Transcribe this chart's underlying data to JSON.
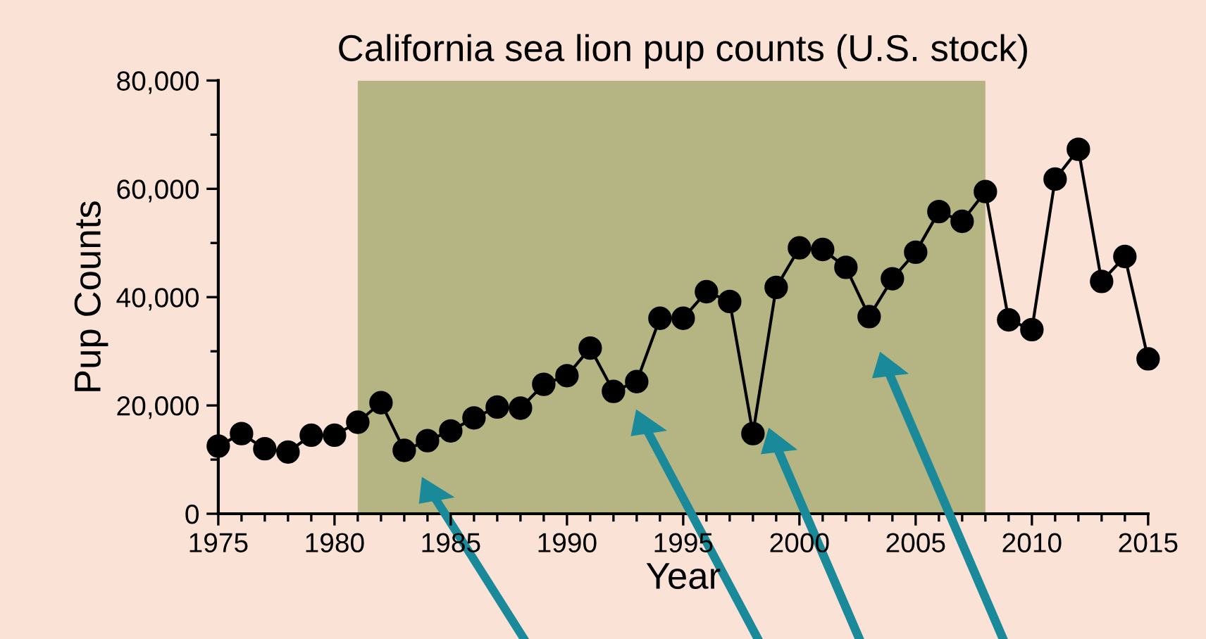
{
  "chart_data": {
    "type": "line",
    "title": "California sea lion pup counts (U.S. stock)",
    "xlabel": "Year",
    "ylabel": "Pup Counts",
    "x": [
      1975,
      1976,
      1977,
      1978,
      1979,
      1980,
      1981,
      1982,
      1983,
      1984,
      1985,
      1986,
      1987,
      1988,
      1989,
      1990,
      1991,
      1992,
      1993,
      1994,
      1995,
      1996,
      1997,
      1998,
      1999,
      2000,
      2001,
      2002,
      2003,
      2004,
      2005,
      2006,
      2007,
      2008,
      2009,
      2010,
      2011,
      2012,
      2013,
      2014,
      2015
    ],
    "series": [
      {
        "color": "#000000",
        "values": [
          12500,
          14800,
          12000,
          11400,
          14500,
          14500,
          16900,
          20500,
          11700,
          13500,
          15300,
          17700,
          19700,
          19500,
          23900,
          25500,
          30600,
          22600,
          24400,
          36100,
          36100,
          41000,
          39200,
          14800,
          41800,
          49100,
          48800,
          45500,
          36400,
          43400,
          48300,
          55800,
          54000,
          59500,
          35800,
          34000,
          61800,
          67300,
          42900,
          47500,
          28600
        ]
      }
    ],
    "marker": "circle",
    "line_style": "solid",
    "grid": false,
    "legend": false,
    "xlim": [
      1975,
      2015
    ],
    "xticks": [
      1975,
      1980,
      1985,
      1990,
      1995,
      2000,
      2005,
      2010,
      2015
    ],
    "ylim": [
      0,
      80000
    ],
    "yticks": [
      {
        "value": 0,
        "label": "0"
      },
      {
        "value": 20000,
        "label": "20,000"
      },
      {
        "value": 40000,
        "label": "40,000"
      },
      {
        "value": 60000,
        "label": "60,000"
      },
      {
        "value": 80000,
        "label": "80,000"
      }
    ],
    "bands": [
      {
        "axis": "x",
        "from": 1981,
        "to": 2008,
        "color": "#b5b483"
      }
    ]
  }
}
